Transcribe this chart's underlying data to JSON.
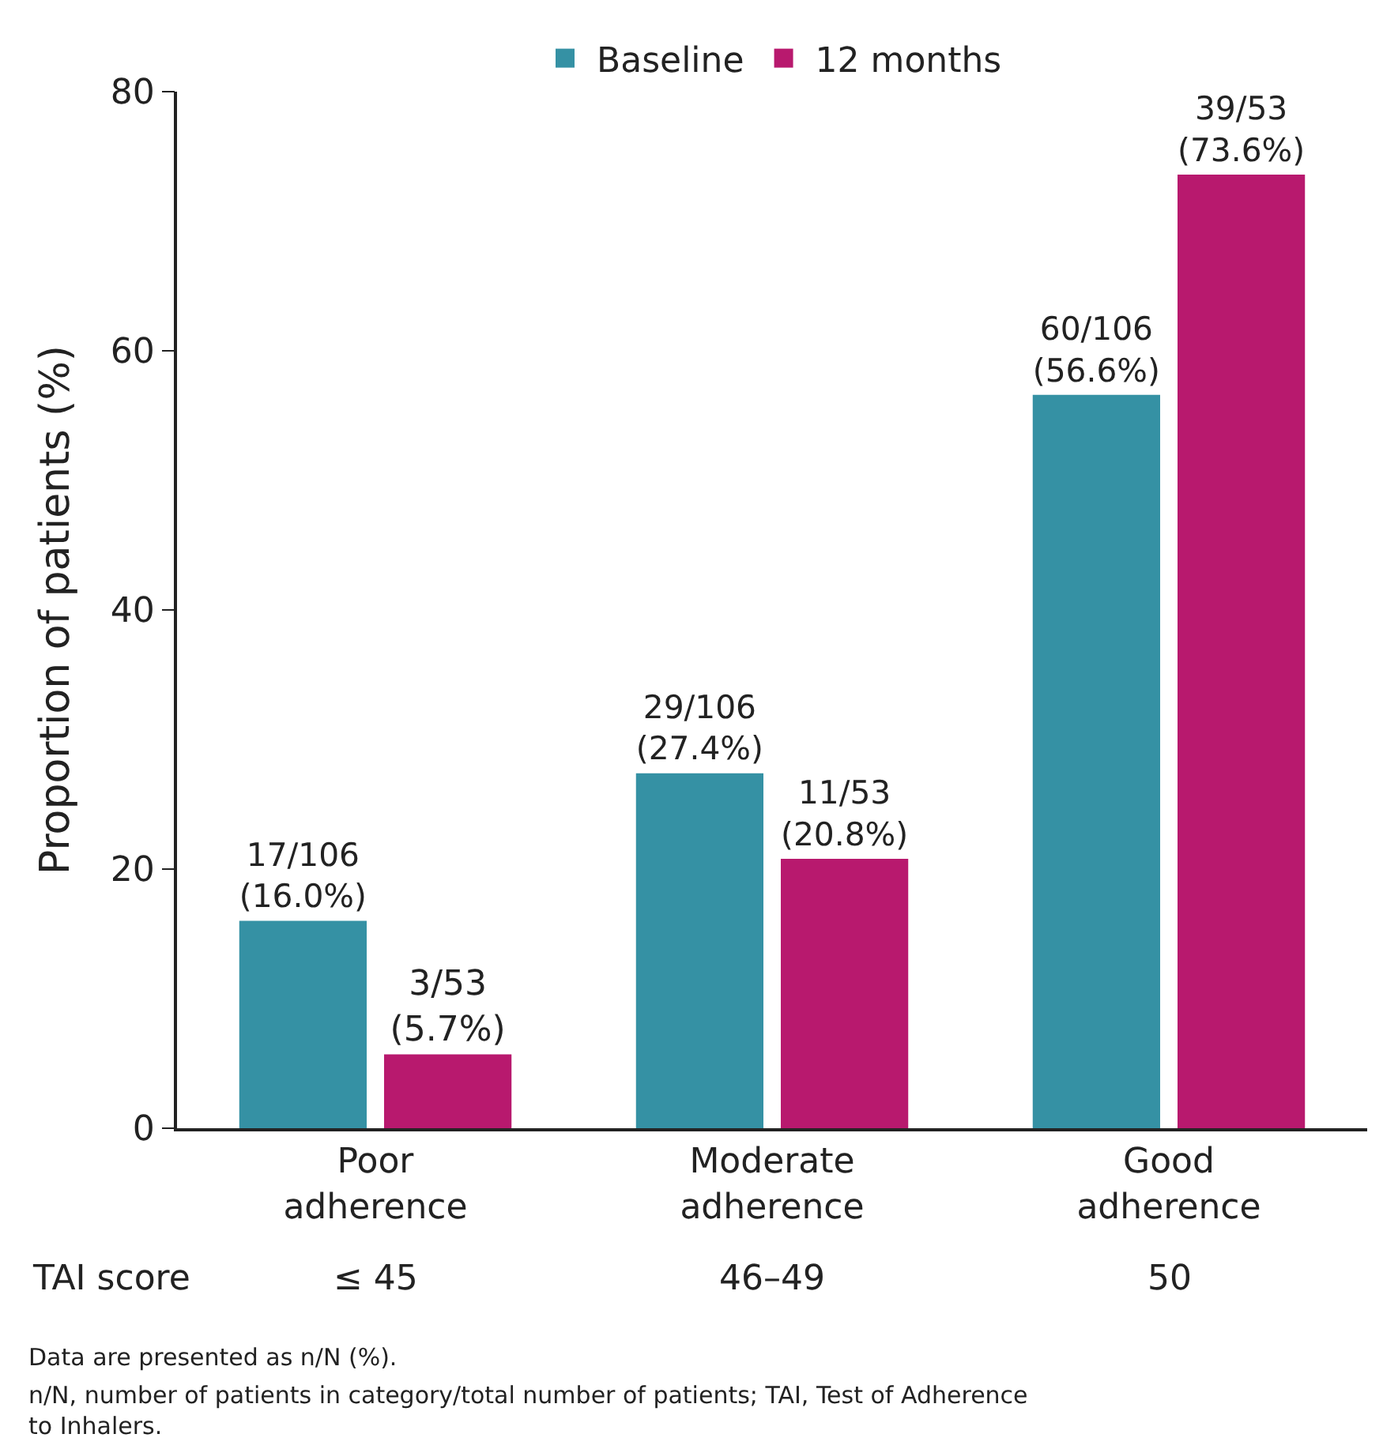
{
  "chart_data": {
    "type": "bar",
    "ylabel": "Proportion of patients (%)",
    "categories": [
      "Poor\nadherence",
      "Moderate\nadherence",
      "Good\nadherence"
    ],
    "series": [
      {
        "name": "Baseline",
        "color": "#3591a4",
        "values": [
          16.0,
          27.4,
          56.6
        ],
        "value_labels": [
          "17/106\n(16.0%)",
          "29/106\n(27.4%)",
          "60/106\n(56.6%)"
        ]
      },
      {
        "name": "12 months",
        "color": "#b8196e",
        "values": [
          5.7,
          20.8,
          73.6
        ],
        "value_labels": [
          "3/53\n(5.7%)",
          "11/53\n(20.8%)",
          "39/53\n(73.6%)"
        ]
      }
    ],
    "ylim": [
      0,
      80
    ],
    "yticks": [
      0,
      20,
      40,
      60,
      80
    ],
    "legend": "top",
    "annotations": [
      "TAI score",
      "≤ 45",
      "46–49",
      "50",
      "Data are presented as n/N (%).",
      "n/N, number of patients in category/total number of patients; TAI, Test of Adherence to Inhalers."
    ]
  }
}
